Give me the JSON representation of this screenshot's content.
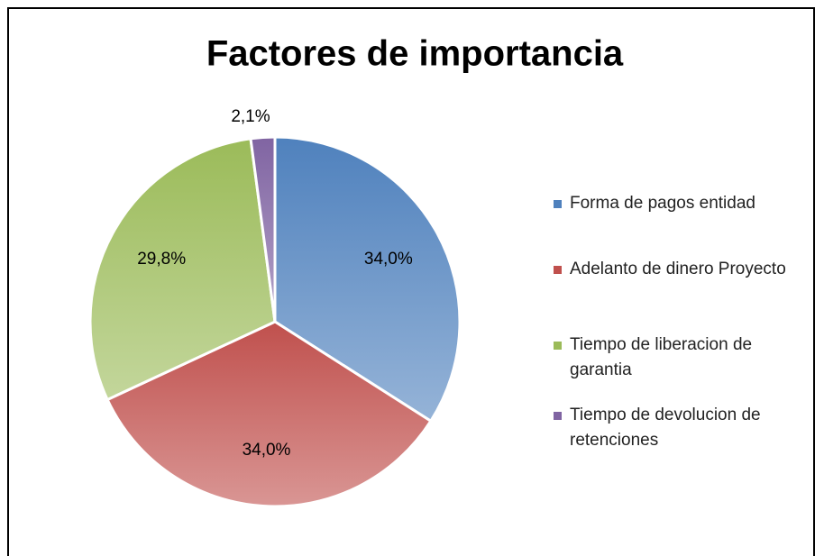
{
  "chart_data": {
    "type": "pie",
    "title": "Factores de importancia",
    "categories": [
      "Forma de pagos entidad",
      "Adelanto de dinero Proyecto",
      "Tiempo de liberacion de garantia",
      "Tiempo de devolucion de retenciones"
    ],
    "values": [
      34.0,
      34.0,
      29.8,
      2.1
    ],
    "value_labels": [
      "34,0%",
      "34,0%",
      "29,8%",
      "2,1%"
    ],
    "colors": [
      "#4f81bd",
      "#c0504d",
      "#9bbb59",
      "#8064a2"
    ],
    "legend": "right"
  }
}
